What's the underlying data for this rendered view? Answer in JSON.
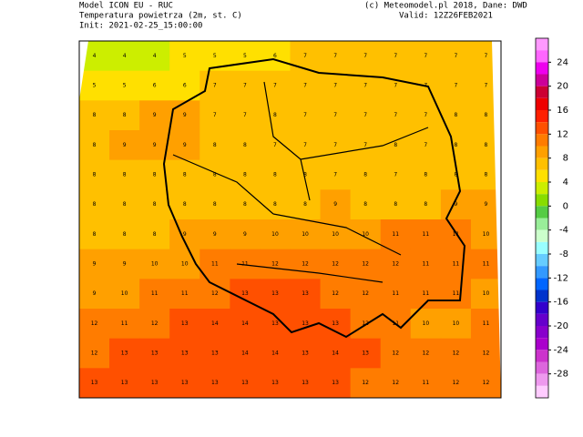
{
  "header": {
    "model": "Model ICON EU - RUC",
    "variable": "Temperatura powietrza (2m, st. C)",
    "init": "Init: 2021-02-25_15:00:00",
    "credit": "(c) Meteomodel.pl 2018, Dane: DWD",
    "valid": "Valid: 12Z26FEB2021"
  },
  "colorbar": {
    "range": [
      28,
      -32
    ],
    "ticks": [
      24,
      20,
      16,
      12,
      8,
      4,
      0,
      -4,
      -8,
      -12,
      -16,
      -20,
      -24,
      -28
    ],
    "colors": [
      "#ff99ff",
      "#ff66ff",
      "#ee00ee",
      "#cc0099",
      "#cc0033",
      "#ee0000",
      "#ff2000",
      "#ff5000",
      "#ff7c00",
      "#ffa000",
      "#ffc000",
      "#ffe000",
      "#ccee00",
      "#88dd00",
      "#55cc44",
      "#99ee99",
      "#ccffcc",
      "#99ffff",
      "#66ccff",
      "#3399ff",
      "#0066ff",
      "#0033cc",
      "#3300cc",
      "#6600cc",
      "#8800cc",
      "#aa00cc",
      "#cc33cc",
      "#dd66dd",
      "#ee99ee",
      "#ffccff"
    ]
  },
  "field": {
    "rows": [
      [
        4,
        4,
        4,
        5,
        5,
        5,
        6,
        7,
        7,
        7,
        7,
        7,
        7,
        7
      ],
      [
        5,
        5,
        6,
        6,
        7,
        7,
        7,
        7,
        7,
        7,
        7,
        7,
        7,
        7
      ],
      [
        8,
        8,
        9,
        9,
        7,
        7,
        8,
        7,
        7,
        7,
        7,
        7,
        8,
        8
      ],
      [
        8,
        9,
        9,
        9,
        8,
        8,
        7,
        7,
        7,
        7,
        8,
        7,
        8,
        8
      ],
      [
        8,
        8,
        8,
        8,
        8,
        8,
        8,
        8,
        7,
        8,
        7,
        8,
        8,
        8
      ],
      [
        8,
        8,
        8,
        8,
        8,
        8,
        8,
        8,
        9,
        8,
        8,
        8,
        9,
        9
      ],
      [
        8,
        8,
        8,
        9,
        9,
        9,
        10,
        10,
        10,
        10,
        11,
        11,
        11,
        10
      ],
      [
        9,
        9,
        10,
        10,
        11,
        11,
        12,
        12,
        12,
        12,
        12,
        11,
        11,
        11
      ],
      [
        9,
        10,
        11,
        11,
        12,
        13,
        13,
        13,
        12,
        12,
        11,
        11,
        11,
        10
      ],
      [
        12,
        11,
        12,
        13,
        14,
        14,
        13,
        13,
        13,
        12,
        11,
        10,
        10,
        11
      ],
      [
        12,
        13,
        13,
        13,
        13,
        14,
        14,
        13,
        14,
        13,
        12,
        12,
        12,
        12
      ],
      [
        13,
        13,
        13,
        13,
        13,
        13,
        13,
        13,
        13,
        12,
        12,
        11,
        12,
        12
      ]
    ]
  }
}
